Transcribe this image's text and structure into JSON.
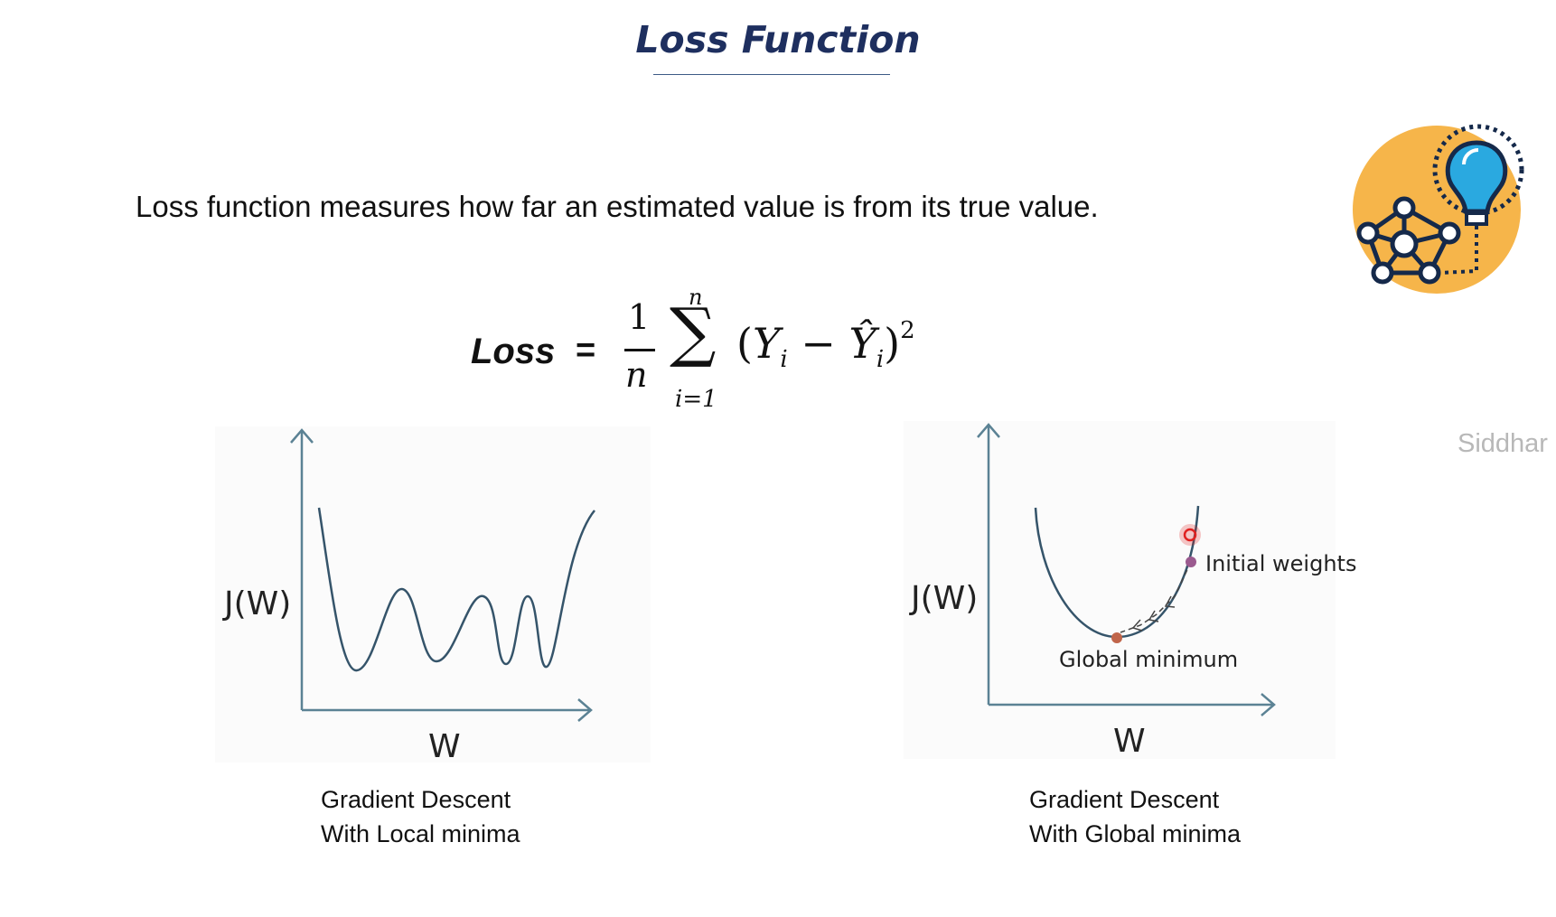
{
  "title": "Loss Function",
  "statement": "Loss function measures how far an estimated value is from its true value.",
  "formula": {
    "lhs": "Loss",
    "equals": "=",
    "fraction_numerator": "1",
    "fraction_denominator": "n",
    "sum_upper": "n",
    "sum_lower": "i=1",
    "exponent": "2"
  },
  "watermark": "Siddhar",
  "left_diagram": {
    "y_label": "J(W)",
    "x_label": "W",
    "caption_line1": "Gradient Descent",
    "caption_line2": "With Local minima"
  },
  "right_diagram": {
    "y_label": "J(W)",
    "x_label": "W",
    "initial_label": "Initial weights",
    "minimum_label": "Global minimum",
    "caption_line1": "Gradient Descent",
    "caption_line2": "With Global minima"
  },
  "colors": {
    "title": "#1e2f5f",
    "axis": "#5b8294",
    "curve": "#35546a",
    "icon_circle": "#f6b54a",
    "icon_navy": "#15294a",
    "bulb_blue": "#2aa9e0",
    "initial_point": "#9b5a8f",
    "minimum_point": "#c0654a",
    "cursor": "#e02020"
  },
  "icon": "lightbulb-network-icon"
}
